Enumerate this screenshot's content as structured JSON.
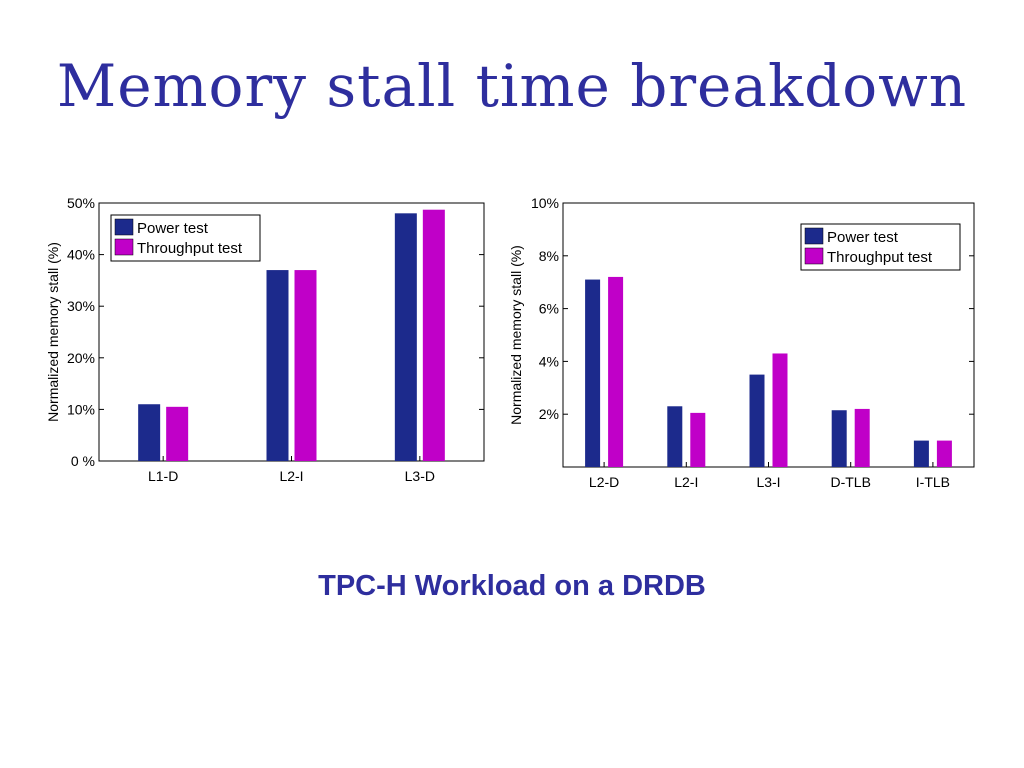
{
  "slide": {
    "title": "Memory stall time breakdown",
    "subtitle": "TPC-H Workload on a DRDB"
  },
  "colors": {
    "title": "#2e2e9e",
    "power": "#1c2a8c",
    "throughput": "#c000c8"
  },
  "chart_data": [
    {
      "type": "bar",
      "categories": [
        "L1-D",
        "L2-I",
        "L3-D"
      ],
      "series": [
        {
          "name": "Power test",
          "values": [
            11,
            37,
            48
          ]
        },
        {
          "name": "Throughput test",
          "values": [
            10.5,
            37,
            48.7
          ]
        }
      ],
      "xlabel": "",
      "ylabel": "Normalized memory stall (%)",
      "ylim": [
        0,
        50
      ],
      "yticks": [
        0,
        10,
        20,
        30,
        40,
        50
      ],
      "ytick_labels": [
        "0 %",
        "10%",
        "20%",
        "30%",
        "40%",
        "50%"
      ],
      "legend_position": "top-left",
      "grid": false
    },
    {
      "type": "bar",
      "categories": [
        "L2-D",
        "L2-I",
        "L3-I",
        "D-TLB",
        "I-TLB"
      ],
      "series": [
        {
          "name": "Power test",
          "values": [
            7.1,
            2.3,
            3.5,
            2.15,
            1.0
          ]
        },
        {
          "name": "Throughput test",
          "values": [
            7.2,
            2.05,
            4.3,
            2.2,
            1.0
          ]
        }
      ],
      "xlabel": "",
      "ylabel": "Normalized memory stall (%)",
      "ylim": [
        0,
        10
      ],
      "yticks": [
        2,
        4,
        6,
        8,
        10
      ],
      "ytick_labels": [
        "2%",
        "4%",
        "6%",
        "8%",
        "10%"
      ],
      "legend_position": "top-right",
      "grid": false
    }
  ]
}
